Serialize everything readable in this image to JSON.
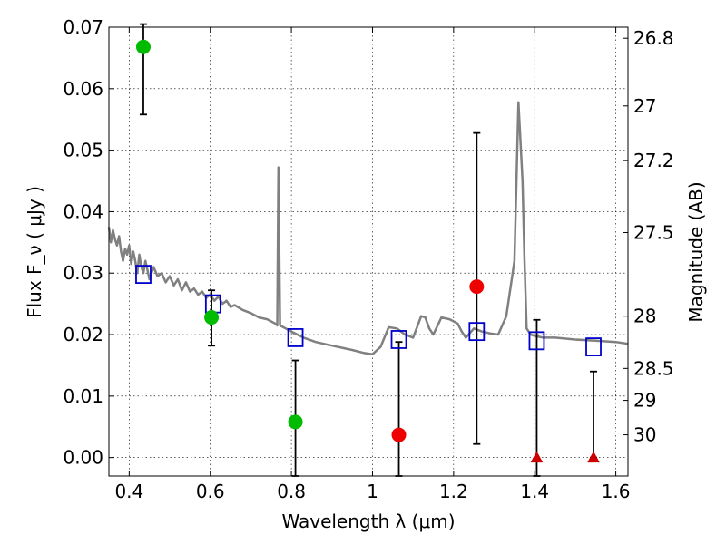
{
  "chart_data": {
    "type": "scatter",
    "xlabel": "Wavelength  λ (μm)",
    "ylabel_left": "Flux  F_ν  ( μJy )",
    "ylabel_right": "Magnitude (AB)",
    "xlim": [
      0.35,
      1.63
    ],
    "ylim": [
      -0.003,
      0.07
    ],
    "x_ticks": [
      0.4,
      0.6,
      0.8,
      1.0,
      1.2,
      1.4,
      1.6
    ],
    "x_tick_labels": [
      "0.4",
      "0.6",
      "0.8",
      "1",
      "1.2",
      "1.4",
      "1.6"
    ],
    "y_ticks": [
      0.0,
      0.01,
      0.02,
      0.03,
      0.04,
      0.05,
      0.06,
      0.07
    ],
    "y_tick_labels": [
      "0.00",
      "0.01",
      "0.02",
      "0.03",
      "0.04",
      "0.05",
      "0.06",
      "0.07"
    ],
    "right_ticks": [
      {
        "flux": 0.0682,
        "label": "26.8"
      },
      {
        "flux": 0.0572,
        "label": "27"
      },
      {
        "flux": 0.0483,
        "label": "27.2"
      },
      {
        "flux": 0.0366,
        "label": "27.5"
      },
      {
        "flux": 0.023,
        "label": "28"
      },
      {
        "flux": 0.0145,
        "label": "28.5"
      },
      {
        "flux": 0.0093,
        "label": "29"
      },
      {
        "flux": 0.0037,
        "label": "30"
      }
    ],
    "grid": true,
    "series": [
      {
        "kind": "line",
        "color": "#808080",
        "x": [
          0.35,
          0.355,
          0.36,
          0.365,
          0.37,
          0.375,
          0.38,
          0.385,
          0.39,
          0.395,
          0.4,
          0.405,
          0.41,
          0.415,
          0.42,
          0.425,
          0.43,
          0.435,
          0.44,
          0.445,
          0.45,
          0.46,
          0.47,
          0.48,
          0.49,
          0.5,
          0.51,
          0.52,
          0.53,
          0.54,
          0.55,
          0.56,
          0.57,
          0.58,
          0.59,
          0.6,
          0.61,
          0.62,
          0.63,
          0.64,
          0.65,
          0.66,
          0.68,
          0.7,
          0.72,
          0.74,
          0.76,
          0.765,
          0.768,
          0.772,
          0.78,
          0.8,
          0.83,
          0.86,
          0.9,
          0.95,
          0.98,
          1.0,
          1.02,
          1.04,
          1.06,
          1.08,
          1.1,
          1.12,
          1.13,
          1.14,
          1.15,
          1.17,
          1.19,
          1.21,
          1.22,
          1.23,
          1.25,
          1.27,
          1.29,
          1.31,
          1.33,
          1.35,
          1.36,
          1.37,
          1.375,
          1.38,
          1.39,
          1.4,
          1.42,
          1.45,
          1.5,
          1.55,
          1.6,
          1.63
        ],
        "y": [
          0.0375,
          0.035,
          0.037,
          0.0355,
          0.0345,
          0.036,
          0.0335,
          0.032,
          0.034,
          0.033,
          0.0345,
          0.0315,
          0.0335,
          0.032,
          0.03,
          0.033,
          0.031,
          0.03,
          0.032,
          0.0305,
          0.029,
          0.031,
          0.0295,
          0.03,
          0.0285,
          0.0295,
          0.028,
          0.029,
          0.0272,
          0.0285,
          0.027,
          0.0275,
          0.0265,
          0.027,
          0.026,
          0.0265,
          0.0255,
          0.0262,
          0.025,
          0.0255,
          0.0245,
          0.0248,
          0.024,
          0.0235,
          0.0228,
          0.0225,
          0.0218,
          0.0215,
          0.0472,
          0.0215,
          0.0212,
          0.0205,
          0.0195,
          0.0188,
          0.0182,
          0.0175,
          0.017,
          0.0168,
          0.018,
          0.0212,
          0.021,
          0.02,
          0.0195,
          0.023,
          0.0228,
          0.021,
          0.02,
          0.0228,
          0.0225,
          0.0218,
          0.0205,
          0.0195,
          0.021,
          0.0205,
          0.0202,
          0.02,
          0.023,
          0.032,
          0.0578,
          0.045,
          0.032,
          0.021,
          0.02,
          0.0198,
          0.0195,
          0.0195,
          0.0192,
          0.019,
          0.0188,
          0.0185
        ]
      },
      {
        "kind": "square",
        "color": "#0000cc",
        "x": [
          0.435,
          0.607,
          0.81,
          1.065,
          1.257,
          1.405,
          1.545
        ],
        "y": [
          0.0298,
          0.025,
          0.0195,
          0.0192,
          0.0205,
          0.019,
          0.018
        ]
      },
      {
        "kind": "circle",
        "color": "#00bb00",
        "x": [
          0.435,
          0.603,
          0.81
        ],
        "y": [
          0.0668,
          0.0228,
          0.0058
        ]
      },
      {
        "kind": "circle",
        "color": "#ee0000",
        "x": [
          1.065,
          1.257
        ],
        "y": [
          0.0037,
          0.0278
        ]
      },
      {
        "kind": "triangle",
        "color": "#cc0000",
        "x": [
          1.405,
          1.545
        ],
        "y": [
          0.0,
          0.0
        ]
      }
    ],
    "errorbars": [
      {
        "x": 0.435,
        "low": 0.0558,
        "high": 0.0705
      },
      {
        "x": 0.603,
        "low": 0.0182,
        "high": 0.0272
      },
      {
        "x": 0.81,
        "low": -0.003,
        "high": 0.0158
      },
      {
        "x": 1.065,
        "low": -0.003,
        "high": 0.0188
      },
      {
        "x": 1.257,
        "low": 0.0022,
        "high": 0.0528
      },
      {
        "x": 1.405,
        "low": -0.003,
        "high": 0.0224
      },
      {
        "x": 1.545,
        "low": 0.0,
        "high": 0.014
      }
    ]
  }
}
